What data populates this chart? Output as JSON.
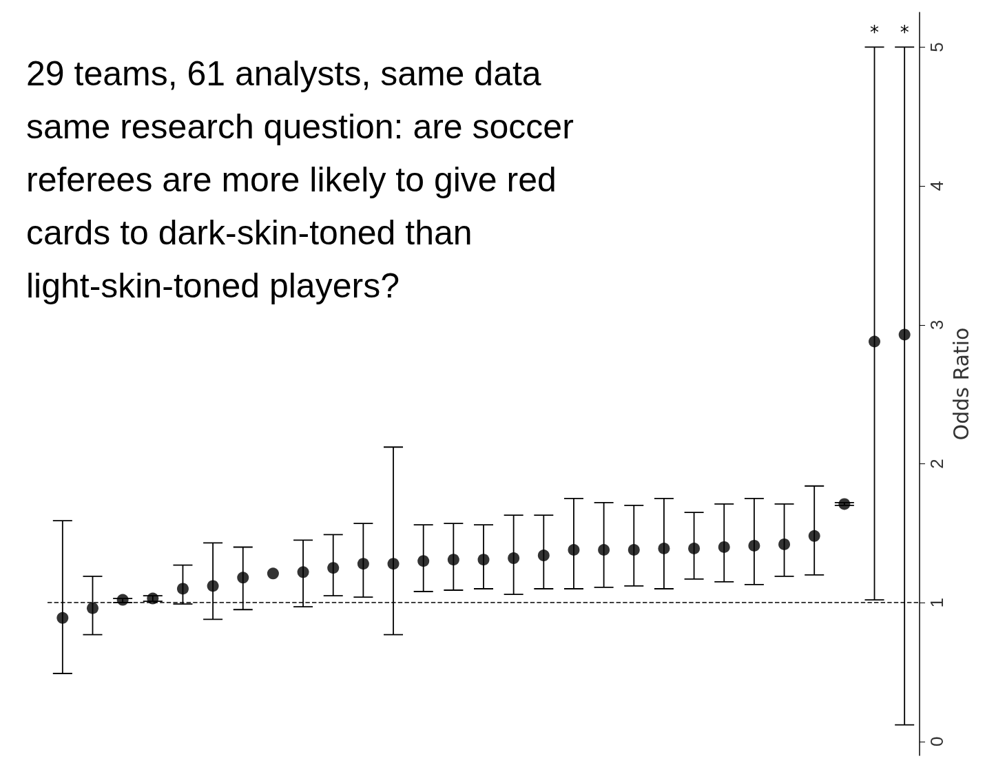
{
  "chart_data": {
    "type": "scatter",
    "title": "29 teams, 61 analysts, same data same research question: are soccer referees are more likely to give red cards to dark-skin-toned than light-skin-toned players?",
    "ylabel": "Odds Ratio",
    "categories": [
      null,
      null,
      null,
      null,
      null,
      null,
      null,
      null,
      null,
      null,
      null,
      null,
      null,
      null,
      null,
      null,
      null,
      null,
      null,
      null,
      null,
      null,
      null,
      null,
      null,
      null,
      null,
      null,
      null
    ],
    "series": [
      {
        "color": "#000000",
        "values": [
          0.89,
          0.96,
          1.02,
          1.03,
          1.1,
          1.12,
          1.18,
          1.21,
          1.22,
          1.25,
          1.28,
          1.28,
          1.3,
          1.31,
          1.31,
          1.32,
          1.34,
          1.38,
          1.38,
          1.38,
          1.39,
          1.39,
          1.4,
          1.41,
          1.42,
          1.48,
          1.71,
          2.88,
          2.93
        ],
        "errors": [
          [
            0.49,
            1.59
          ],
          [
            0.77,
            1.19
          ],
          [
            1.0,
            1.03
          ],
          [
            1.01,
            1.05
          ],
          [
            0.99,
            1.27
          ],
          [
            0.88,
            1.43
          ],
          [
            0.95,
            1.4
          ],
          null,
          [
            0.97,
            1.45
          ],
          [
            1.05,
            1.49
          ],
          [
            1.04,
            1.57
          ],
          [
            0.77,
            2.12
          ],
          [
            1.08,
            1.56
          ],
          [
            1.09,
            1.57
          ],
          [
            1.1,
            1.56
          ],
          [
            1.06,
            1.63
          ],
          [
            1.1,
            1.63
          ],
          [
            1.1,
            1.75
          ],
          [
            1.11,
            1.72
          ],
          [
            1.12,
            1.7
          ],
          [
            1.1,
            1.75
          ],
          [
            1.17,
            1.65
          ],
          [
            1.15,
            1.71
          ],
          [
            1.13,
            1.75
          ],
          [
            1.19,
            1.71
          ],
          [
            1.2,
            1.84
          ],
          [
            1.7,
            1.72
          ],
          [
            1.02,
            5
          ],
          [
            0.12,
            5
          ]
        ]
      }
    ],
    "annotations": [
      "*",
      "*"
    ],
    "ylim": [
      -0.1,
      5.25
    ],
    "yticks": [
      0,
      1,
      2,
      3,
      4,
      5
    ],
    "ref_lines": [
      {
        "axis": "y",
        "value": 1,
        "line_style": "dashed",
        "color": "#000000"
      }
    ],
    "marker": "circle",
    "grid": false,
    "tick_labels": "y"
  }
}
